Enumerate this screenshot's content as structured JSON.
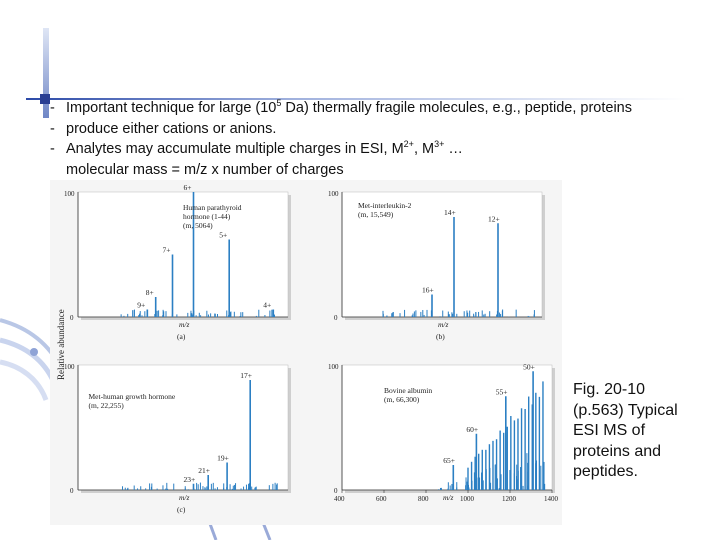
{
  "bullets": [
    {
      "mark": "-",
      "pre": "Important technique for large (10",
      "sup": "5",
      "post": " Da) thermally fragile molecules, e.g., peptide, proteins"
    },
    {
      "mark": "-",
      "text": "produce either cations or anions."
    },
    {
      "mark": "-",
      "pre": "Analytes may accumulate multiple charges in ESI, M",
      "sup1": "2+",
      "mid": ", M",
      "sup2": "3+",
      "post": " …"
    },
    {
      "text": "molecular mass = m/z x number of charges"
    }
  ],
  "figure": {
    "y_axis_label": "Relative abundance",
    "panels": [
      {
        "id": "a",
        "letter": "(a)",
        "title_lines": [
          "Human parathyroid",
          "hormone (1-44)",
          "(m, 5064)"
        ],
        "x_label": "m/z",
        "y_top": "100",
        "y_bottom": "0",
        "peaks": [
          {
            "label": "6+",
            "rel": 1.0
          },
          {
            "label": "5+",
            "rel": 0.62
          },
          {
            "label": "7+",
            "rel": 0.5
          },
          {
            "label": "8+",
            "rel": 0.16
          },
          {
            "label": "9+",
            "rel": 0.06
          },
          {
            "label": "4+",
            "rel": 0.06
          }
        ]
      },
      {
        "id": "b",
        "letter": "(b)",
        "title_lines": [
          "Met-interleukin-2",
          "(m, 15,549)"
        ],
        "x_label": "m/z",
        "y_top": "100",
        "y_bottom": "0",
        "peaks": [
          {
            "label": "14+",
            "rel": 0.8
          },
          {
            "label": "12+",
            "rel": 0.75
          },
          {
            "label": "16+",
            "rel": 0.18
          }
        ]
      },
      {
        "id": "c",
        "letter": "(c)",
        "title_lines": [
          "Met-human growth hormone",
          "(m, 22,255)"
        ],
        "x_label": "m/z",
        "y_top": "100",
        "y_bottom": "0",
        "peaks": [
          {
            "label": "17+",
            "rel": 0.88
          },
          {
            "label": "19+",
            "rel": 0.22
          },
          {
            "label": "21+",
            "rel": 0.12
          },
          {
            "label": "23+",
            "rel": 0.05
          }
        ]
      },
      {
        "id": "d",
        "letter": "",
        "title_lines": [
          "Bovine albumin",
          "(m, 66,300)"
        ],
        "x_label": "m/z",
        "y_top": "100",
        "y_bottom": "0",
        "x_ticks": [
          "400",
          "600",
          "800",
          "1000",
          "1200",
          "1400"
        ],
        "peaks": [
          {
            "label": "50+",
            "rel": 0.95
          },
          {
            "label": "55+",
            "rel": 0.75
          },
          {
            "label": "60+",
            "rel": 0.45
          },
          {
            "label": "65+",
            "rel": 0.2
          }
        ]
      }
    ]
  },
  "caption": [
    "Fig. 20-10",
    "(p.563)  Typical",
    "ESI MS of",
    "proteins and",
    "peptides."
  ]
}
